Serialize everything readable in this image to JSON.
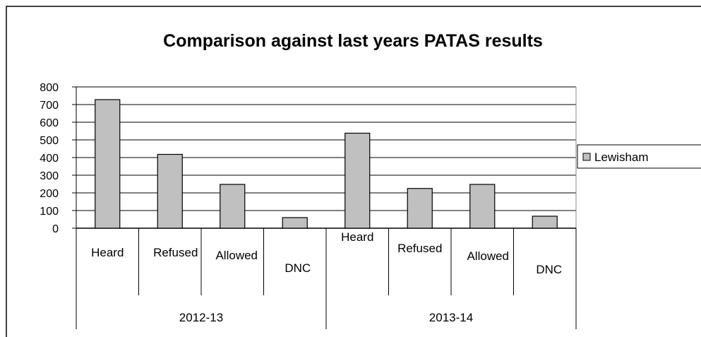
{
  "chart_data": {
    "type": "bar",
    "title": "Comparison against last years PATAS results",
    "xlabel": "",
    "ylabel": "",
    "ylim": [
      0,
      800
    ],
    "yticks": [
      0,
      100,
      200,
      300,
      400,
      500,
      600,
      700,
      800
    ],
    "groups": [
      {
        "label": "2012-13",
        "categories": [
          "Heard",
          "Refused",
          "Allowed",
          "DNC"
        ]
      },
      {
        "label": "2013-14",
        "categories": [
          "Heard",
          "Refused",
          "Allowed",
          "DNC"
        ]
      }
    ],
    "series": [
      {
        "name": "Lewisham",
        "color": "#c0c0c0",
        "values": [
          728,
          418,
          248,
          60,
          538,
          225,
          248,
          68
        ]
      }
    ],
    "grid": "horizontal",
    "legend": "right"
  }
}
